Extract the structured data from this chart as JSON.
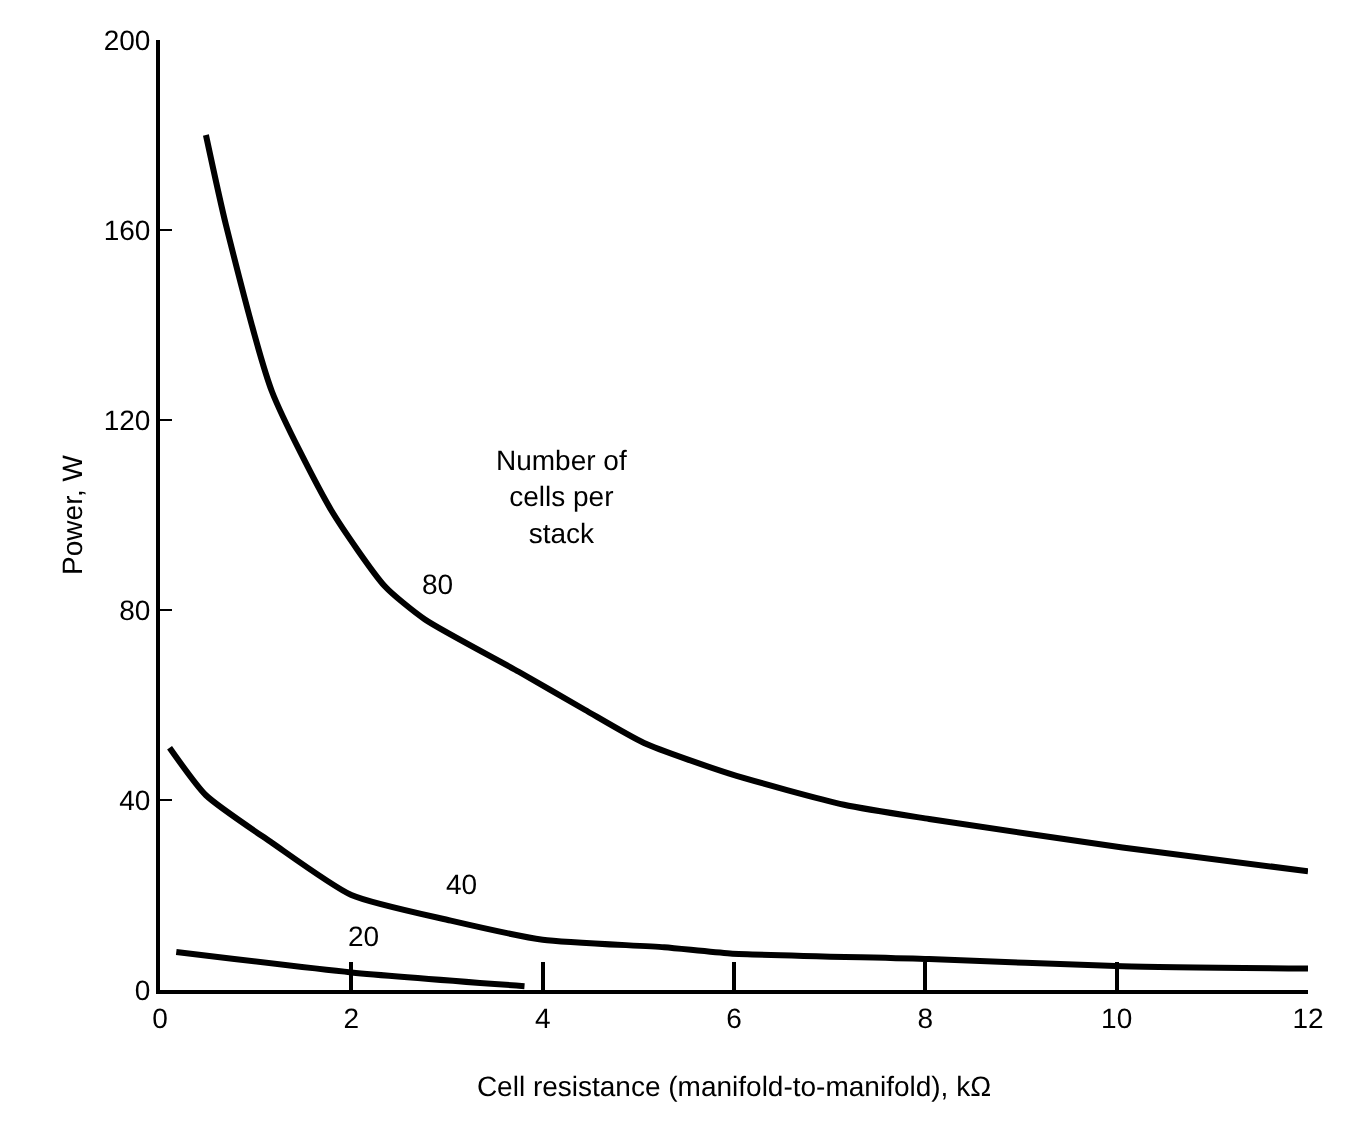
{
  "chart_data": {
    "type": "line",
    "xlabel": "Cell resistance (manifold-to-manifold), kΩ",
    "ylabel": "Power, W",
    "annotations": [
      "Number of cells per stack"
    ],
    "series": [
      {
        "name": "80",
        "color": "#000000",
        "x": [
          0.48,
          0.69,
          1.17,
          1.79,
          2.35,
          2.77,
          3.75,
          4.44,
          5.06,
          5.96,
          7.15,
          8.04,
          10.06,
          12.0
        ],
        "values": [
          180,
          161,
          126,
          101,
          85,
          78,
          67,
          59,
          52,
          45.5,
          39,
          36,
          30,
          25
        ]
      },
      {
        "name": "40",
        "color": "#000000",
        "x": [
          0.1,
          0.48,
          1.17,
          2.0,
          3.04,
          4.0,
          5.27,
          5.96,
          8.04,
          10.06,
          12.0
        ],
        "values": [
          51,
          41,
          31,
          20,
          14.6,
          10.6,
          9,
          7.7,
          6.5,
          5,
          4.5
        ]
      },
      {
        "name": "20",
        "color": "#000000",
        "x": [
          0.17,
          2.0,
          3.81
        ],
        "values": [
          8,
          3.7,
          0.8
        ]
      }
    ],
    "xlim": [
      0,
      12
    ],
    "ylim": [
      0,
      200
    ],
    "xticks": [
      0,
      2,
      4,
      6,
      8,
      10,
      12
    ],
    "yticks": [
      0,
      40,
      80,
      120,
      160,
      200
    ],
    "grid": false,
    "legend": false,
    "marker": "none",
    "line_style": "solid"
  }
}
